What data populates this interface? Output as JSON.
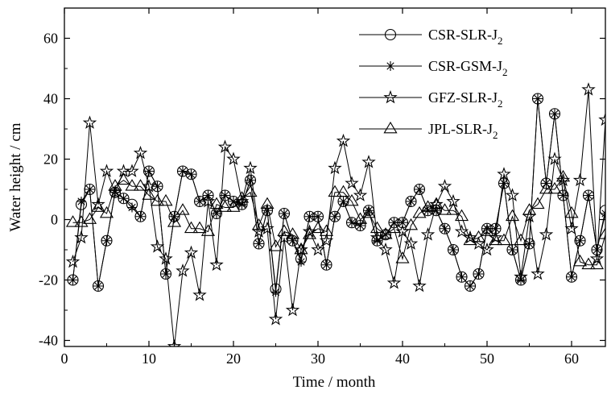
{
  "chart_data": {
    "type": "line",
    "xlabel": "Time / month",
    "ylabel": "Water height / cm",
    "xlim": [
      0,
      64
    ],
    "ylim": [
      -42,
      70
    ],
    "x_ticks": [
      0,
      10,
      20,
      30,
      40,
      50,
      60
    ],
    "y_ticks": [
      -40,
      -20,
      0,
      20,
      40,
      60
    ],
    "grid": false,
    "legend_position": "top-right",
    "line_color": "#000000",
    "x": [
      1,
      2,
      3,
      4,
      5,
      6,
      7,
      8,
      9,
      10,
      11,
      12,
      13,
      14,
      15,
      16,
      17,
      18,
      19,
      20,
      21,
      22,
      23,
      24,
      25,
      26,
      27,
      28,
      29,
      30,
      31,
      32,
      33,
      34,
      35,
      36,
      37,
      38,
      39,
      40,
      41,
      42,
      43,
      44,
      45,
      46,
      47,
      48,
      49,
      50,
      51,
      52,
      53,
      54,
      55,
      56,
      57,
      58,
      59,
      60,
      61,
      62,
      63,
      64
    ],
    "series": [
      {
        "name": "CSR-SLR-J",
        "name_sub": "2",
        "marker": "circle",
        "values": [
          -20,
          5,
          10,
          -22,
          -7,
          9,
          7,
          5,
          1,
          16,
          11,
          -18,
          1,
          16,
          15,
          6,
          8,
          2,
          8,
          6,
          5,
          13,
          -8,
          3,
          -23,
          2,
          -7,
          -13,
          1,
          1,
          -15,
          1,
          6,
          -1,
          -2,
          3,
          -7,
          -5,
          -1,
          -1,
          6,
          10,
          3,
          3,
          -3,
          -10,
          -19,
          -22,
          -18,
          -3,
          -3,
          12,
          -10,
          -20,
          -8,
          40,
          12,
          35,
          8,
          -19,
          -7,
          8,
          -10,
          3
        ]
      },
      {
        "name": "CSR-GSM-J",
        "name_sub": "2",
        "marker": "asterisk",
        "values": [
          -20,
          6,
          10,
          -22,
          -7,
          9,
          7,
          4,
          1,
          16,
          11,
          -18,
          1,
          16,
          15,
          6,
          8,
          2,
          8,
          6,
          5,
          13,
          -8,
          3,
          -24,
          2,
          -7,
          -14,
          1,
          1,
          -15,
          1,
          6,
          -1,
          -2,
          3,
          -7,
          -5,
          -1,
          -1,
          6,
          10,
          3,
          3,
          -3,
          -10,
          -19,
          -22,
          -18,
          -3,
          -3,
          12,
          -10,
          -20,
          -8,
          40,
          12,
          35,
          8,
          -19,
          -7,
          8,
          -10,
          2
        ]
      },
      {
        "name": "GFZ-SLR-J",
        "name_sub": "2",
        "marker": "star",
        "values": [
          -14,
          -6,
          32,
          5,
          16,
          9,
          16,
          16,
          22,
          11,
          -9,
          -13,
          -42,
          -17,
          -11,
          -25,
          6,
          -15,
          24,
          20,
          6,
          17,
          -4,
          -3,
          -33,
          -6,
          -30,
          -10,
          -4,
          -10,
          -7,
          17,
          26,
          12,
          8,
          19,
          -6,
          -10,
          -21,
          -4,
          -8,
          -22,
          -5,
          5,
          11,
          6,
          -4,
          -6,
          -8,
          -10,
          -6,
          15,
          8,
          -19,
          1,
          -18,
          -5,
          20,
          13,
          -3,
          13,
          43,
          -13,
          33
        ]
      },
      {
        "name": "JPL-SLR-J",
        "name_sub": "2",
        "marker": "triangle",
        "values": [
          -1,
          -1,
          0,
          4,
          2,
          11,
          13,
          11,
          11,
          8,
          6,
          6,
          -1,
          3,
          -3,
          -3,
          -4,
          5,
          4,
          4,
          7,
          9,
          -2,
          5,
          -9,
          -4,
          -5,
          -10,
          -5,
          -3,
          -4,
          9,
          9,
          6,
          0,
          2,
          -3,
          -5,
          -3,
          -13,
          -2,
          2,
          4,
          5,
          3,
          3,
          1,
          -7,
          -6,
          -4,
          -7,
          -7,
          1,
          -7,
          3,
          5,
          10,
          10,
          14,
          2,
          -14,
          -15,
          -15,
          -5
        ]
      }
    ]
  }
}
